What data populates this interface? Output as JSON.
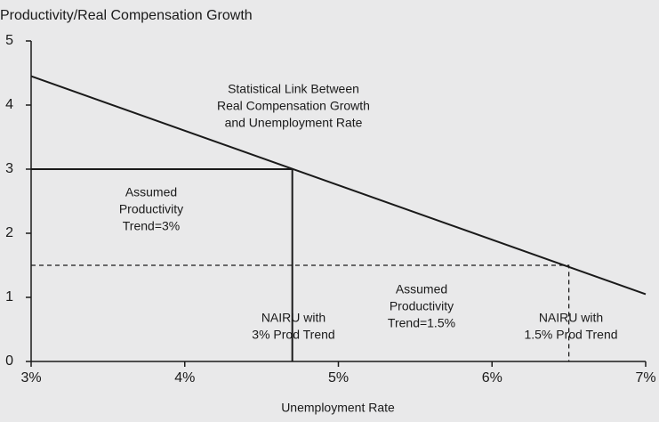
{
  "chart_data": {
    "type": "line",
    "title": "Productivity/Real Compensation Growth",
    "x_label": "Unemployment Rate",
    "xlim": [
      3,
      7
    ],
    "ylim": [
      0,
      5
    ],
    "xticks": [
      {
        "value": 3,
        "label": "3%"
      },
      {
        "value": 4,
        "label": "4%"
      },
      {
        "value": 5,
        "label": "5%"
      },
      {
        "value": 6,
        "label": "6%"
      },
      {
        "value": 7,
        "label": "7%"
      }
    ],
    "yticks": [
      0,
      1,
      2,
      3,
      4,
      5
    ],
    "series": [
      {
        "color": "#1a1a1a",
        "x": [
          3,
          7
        ],
        "values": [
          4.45,
          1.05
        ],
        "dash": false
      },
      {
        "color": "#1a1a1a",
        "x": [
          3,
          4.7,
          4.7
        ],
        "values": [
          3,
          3,
          0
        ],
        "dash": false
      },
      {
        "color": "#1a1a1a",
        "x": [
          3,
          6.5,
          6.5
        ],
        "values": [
          1.5,
          1.5,
          0
        ],
        "dash": true
      }
    ],
    "annotations": [
      [
        "Statistical Link Between",
        "Real Compensation Growth",
        "and Unemployment Rate"
      ],
      [
        "Assumed",
        "Productivity",
        "Trend=3%"
      ],
      [
        "NAIRU with",
        "3% Prod Trend"
      ],
      [
        "Assumed",
        "Productivity",
        "Trend=1.5%"
      ],
      [
        "NAIRU with",
        "1.5% Prod Trend"
      ]
    ]
  }
}
